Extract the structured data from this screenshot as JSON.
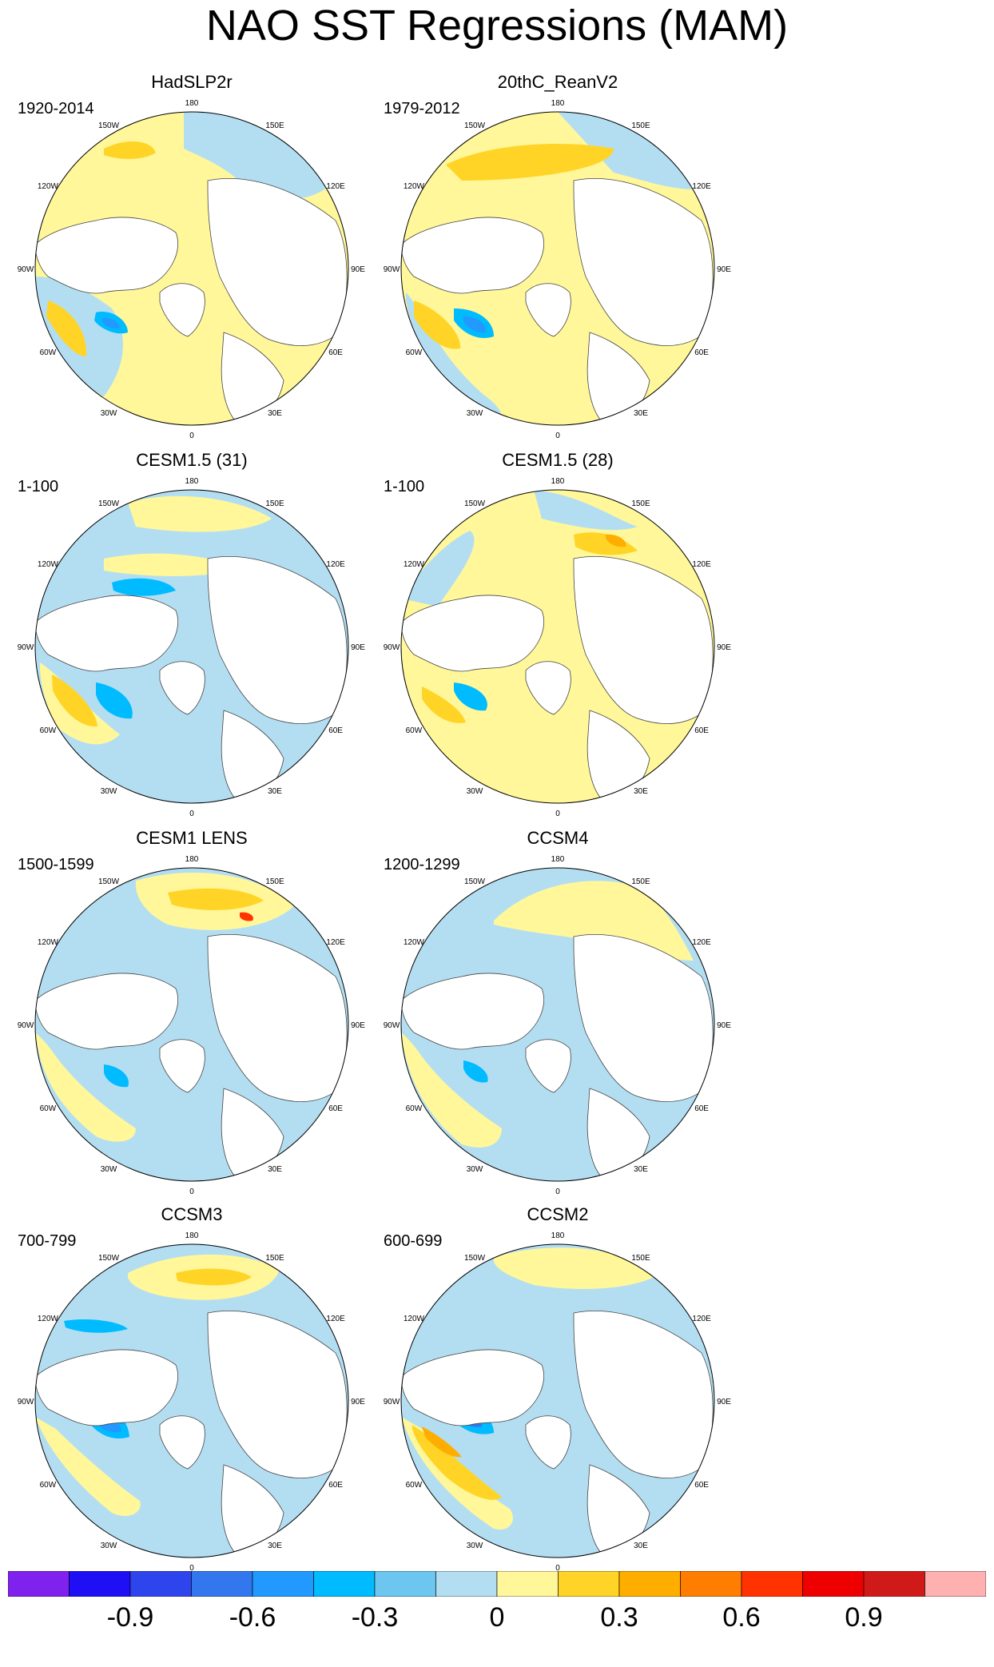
{
  "title": "NAO SST Regressions (MAM)",
  "lon_labels": [
    "180",
    "150E",
    "120E",
    "90E",
    "60E",
    "30E",
    "0",
    "30W",
    "60W",
    "90W",
    "120W",
    "150W"
  ],
  "panels": [
    {
      "title": "HadSLP2r",
      "period": "1920-2014",
      "pattern": 0
    },
    {
      "title": "20thC_ReanV2",
      "period": "1979-2012",
      "pattern": 1
    },
    {
      "title": "CESM1.5 (31)",
      "period": "1-100",
      "pattern": 2
    },
    {
      "title": "CESM1.5 (28)",
      "period": "1-100",
      "pattern": 3
    },
    {
      "title": "CESM1 LENS",
      "period": "1500-1599",
      "pattern": 4
    },
    {
      "title": "CCSM4",
      "period": "1200-1299",
      "pattern": 5
    },
    {
      "title": "CCSM3",
      "period": "700-799",
      "pattern": 6
    },
    {
      "title": "CCSM2",
      "period": "600-699",
      "pattern": 7
    }
  ],
  "colorbar": {
    "colors": [
      "#7f22ee",
      "#1e0ff5",
      "#2e45ee",
      "#3377ee",
      "#2299ff",
      "#00bbff",
      "#6cc6f0",
      "#b3def2",
      "#fff79a",
      "#ffd426",
      "#ffae00",
      "#ff7d00",
      "#ff3300",
      "#ee0000",
      "#d01a1a",
      "#ffb0b0"
    ],
    "labels": [
      "-0.9",
      "-0.6",
      "-0.3",
      "0",
      "0.3",
      "0.6",
      "0.9"
    ],
    "label_positions": [
      1,
      3,
      5,
      7,
      9,
      11,
      13
    ]
  }
}
